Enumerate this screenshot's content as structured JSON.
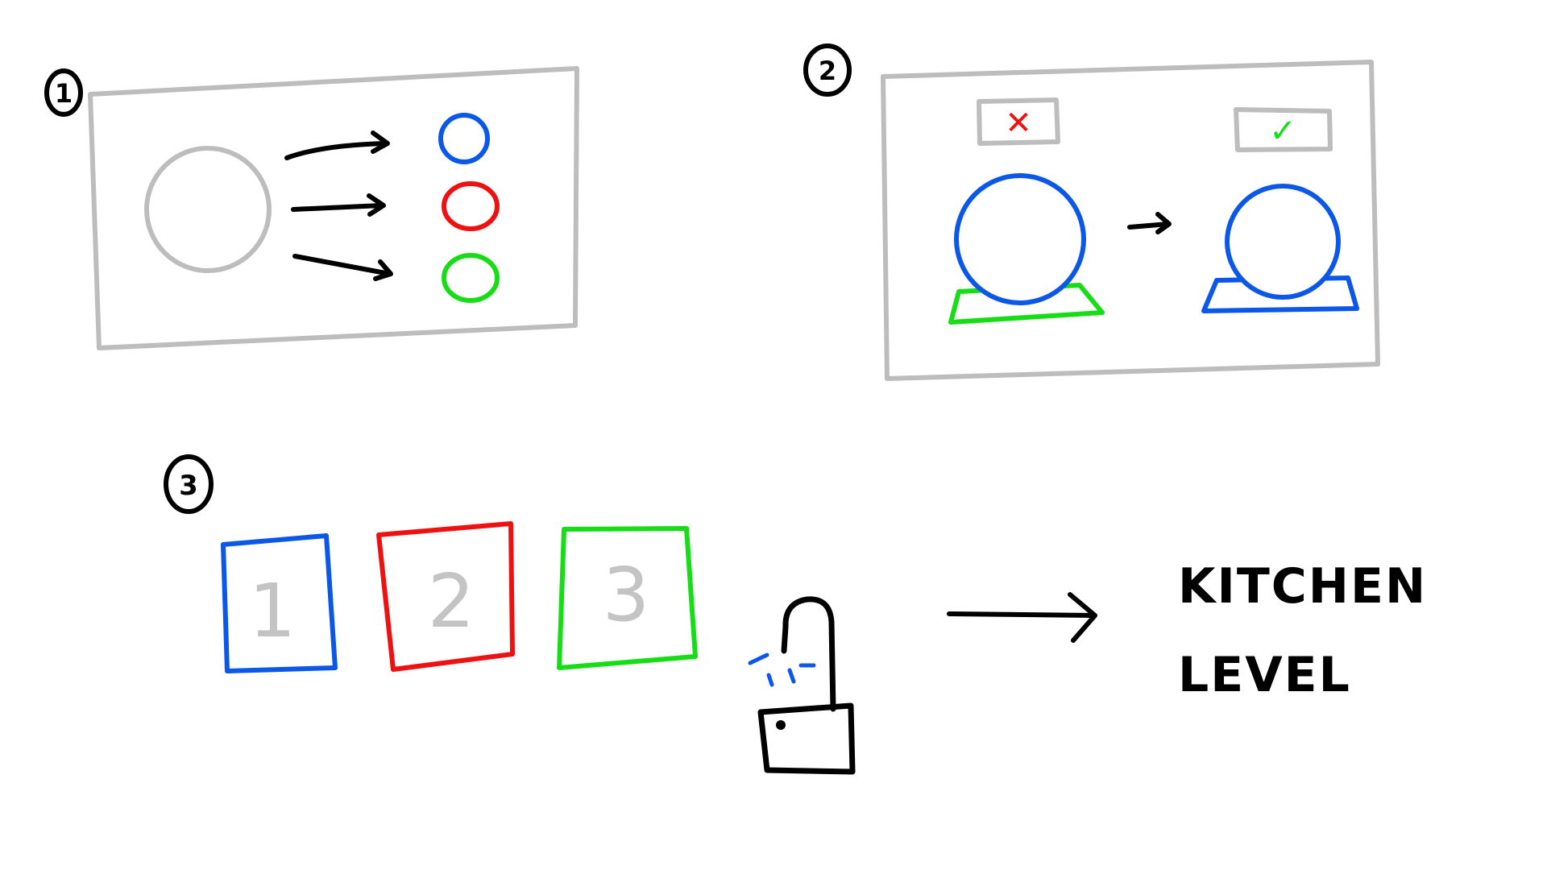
{
  "steps": [
    {
      "number": "1"
    },
    {
      "number": "2"
    },
    {
      "number": "3"
    }
  ],
  "panel1": {
    "source_circle_color": "#bdbdbd",
    "target_colors": [
      "#0b57e8",
      "#ee1111",
      "#17dd17"
    ]
  },
  "panel2": {
    "wrong_mark": "✕",
    "right_mark": "✓",
    "wrong_color": "#ee1111",
    "right_color": "#17dd17",
    "ball_color": "#0b57e8"
  },
  "tiles": [
    {
      "number": "1",
      "color": "#0b57e8"
    },
    {
      "number": "2",
      "color": "#ee1111"
    },
    {
      "number": "3",
      "color": "#17dd17"
    }
  ],
  "padlock": {
    "icon": "unlocked-padlock-icon"
  },
  "result": {
    "line1": "KITCHEN",
    "line2": "LEVEL"
  },
  "colors": {
    "ink": "#000000",
    "frame": "#bdbdbd",
    "blue": "#0b57e8",
    "red": "#ee1111",
    "green": "#17dd17",
    "tile_text": "#c4c4c4"
  }
}
